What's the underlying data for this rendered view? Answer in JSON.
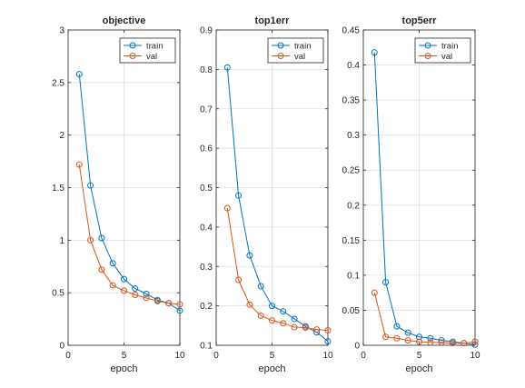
{
  "colors": {
    "train": "#0072BD",
    "val": "#D95319",
    "grid": "#dfdfdf",
    "axis": "#262626",
    "background": "#ffffff"
  },
  "chart_data": [
    {
      "type": "line",
      "title": "objective",
      "xlabel": "epoch",
      "ylabel": "",
      "xlim": [
        0,
        10
      ],
      "ylim": [
        0,
        3
      ],
      "xticks": [
        0,
        5,
        10
      ],
      "yticks": [
        0,
        0.5,
        1,
        1.5,
        2,
        2.5,
        3
      ],
      "ytick_labels": [
        "0",
        "0.5",
        "1",
        "1.5",
        "2",
        "2.5",
        "3"
      ],
      "grid": true,
      "legend_position": "top-right",
      "x": [
        1,
        2,
        3,
        4,
        5,
        6,
        7,
        8,
        9,
        10
      ],
      "series": [
        {
          "name": "train",
          "color": "#0072BD",
          "marker": "circle",
          "values": [
            2.58,
            1.52,
            1.02,
            0.78,
            0.63,
            0.54,
            0.49,
            0.43,
            0.4,
            0.33
          ]
        },
        {
          "name": "val",
          "color": "#D95319",
          "marker": "circle",
          "values": [
            1.72,
            1.0,
            0.72,
            0.57,
            0.52,
            0.48,
            0.45,
            0.42,
            0.4,
            0.39
          ]
        }
      ]
    },
    {
      "type": "line",
      "title": "top1err",
      "xlabel": "epoch",
      "ylabel": "",
      "xlim": [
        0,
        10
      ],
      "ylim": [
        0.1,
        0.9
      ],
      "xticks": [
        0,
        5,
        10
      ],
      "yticks": [
        0.1,
        0.2,
        0.3,
        0.4,
        0.5,
        0.6,
        0.7,
        0.8,
        0.9
      ],
      "ytick_labels": [
        "0.1",
        "0.2",
        "0.3",
        "0.4",
        "0.5",
        "0.6",
        "0.7",
        "0.8",
        "0.9"
      ],
      "grid": true,
      "legend_position": "top-right",
      "x": [
        1,
        2,
        3,
        4,
        5,
        6,
        7,
        8,
        9,
        10
      ],
      "series": [
        {
          "name": "train",
          "color": "#0072BD",
          "marker": "circle",
          "values": [
            0.805,
            0.48,
            0.328,
            0.25,
            0.2,
            0.186,
            0.167,
            0.148,
            0.133,
            0.11
          ]
        },
        {
          "name": "val",
          "color": "#D95319",
          "marker": "circle",
          "values": [
            0.448,
            0.266,
            0.203,
            0.175,
            0.163,
            0.156,
            0.146,
            0.145,
            0.14,
            0.138
          ]
        }
      ]
    },
    {
      "type": "line",
      "title": "top5err",
      "xlabel": "epoch",
      "ylabel": "",
      "xlim": [
        0,
        10
      ],
      "ylim": [
        0,
        0.45
      ],
      "xticks": [
        0,
        5,
        10
      ],
      "yticks": [
        0,
        0.05,
        0.1,
        0.15,
        0.2,
        0.25,
        0.3,
        0.35,
        0.4,
        0.45
      ],
      "ytick_labels": [
        "0",
        "0.05",
        "0.1",
        "0.15",
        "0.2",
        "0.25",
        "0.3",
        "0.35",
        "0.4",
        "0.45"
      ],
      "grid": true,
      "legend_position": "top-right",
      "x": [
        1,
        2,
        3,
        4,
        5,
        6,
        7,
        8,
        9,
        10
      ],
      "series": [
        {
          "name": "train",
          "color": "#0072BD",
          "marker": "circle",
          "values": [
            0.418,
            0.09,
            0.027,
            0.018,
            0.012,
            0.01,
            0.007,
            0.005,
            0.003,
            0.001
          ]
        },
        {
          "name": "val",
          "color": "#D95319",
          "marker": "circle",
          "values": [
            0.075,
            0.012,
            0.01,
            0.007,
            0.005,
            0.004,
            0.004,
            0.003,
            0.003,
            0.005
          ]
        }
      ]
    }
  ]
}
